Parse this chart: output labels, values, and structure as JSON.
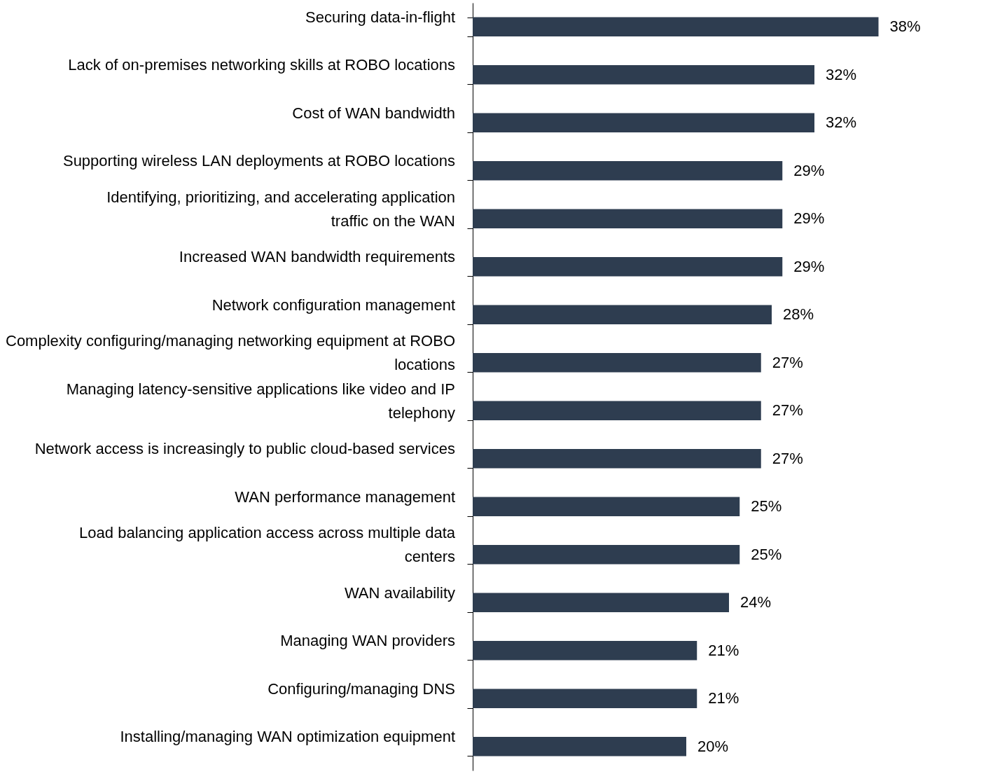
{
  "chart_data": {
    "type": "bar",
    "orientation": "horizontal",
    "color": "#2e3d50",
    "categories": [
      "Securing data-in-flight",
      "Lack of on-premises networking skills at ROBO locations",
      "Cost of WAN bandwidth",
      "Supporting wireless LAN deployments at ROBO locations",
      "Identifying, prioritizing, and accelerating application traffic on the WAN",
      "Increased WAN bandwidth requirements",
      "Network configuration management",
      "Complexity configuring/managing networking equipment at ROBO locations",
      "Managing latency-sensitive applications like video and IP telephony",
      "Network access is increasingly to public cloud-based services",
      "WAN performance management",
      "Load balancing application access across multiple data centers",
      "WAN availability",
      "Managing WAN providers",
      "Configuring/managing DNS",
      "Installing/managing WAN optimization equipment"
    ],
    "values": [
      38,
      32,
      32,
      29,
      29,
      29,
      28,
      27,
      27,
      27,
      25,
      25,
      24,
      21,
      21,
      20
    ],
    "value_labels": [
      "38%",
      "32%",
      "32%",
      "29%",
      "29%",
      "29%",
      "28%",
      "27%",
      "27%",
      "27%",
      "25%",
      "25%",
      "24%",
      "21%",
      "21%",
      "20%"
    ],
    "data_labels": false
  }
}
